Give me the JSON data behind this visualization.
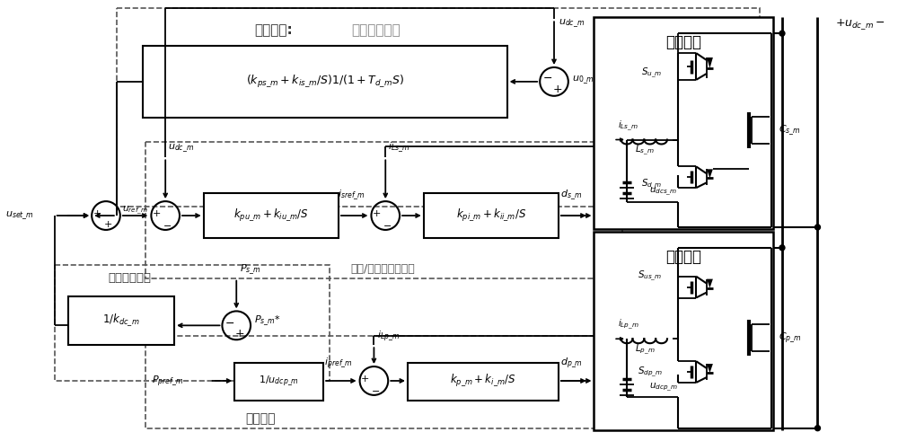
{
  "bg_color": "#ffffff",
  "fig_w": 10.0,
  "fig_h": 4.91,
  "dpi": 100,
  "secondary_label1": "二次控制:",
  "secondary_label2": "直流电压恢复",
  "dual_loop_label": "电压/电流双闭环控制",
  "droop_label": "直流电压下垂",
  "power_ctrl_label": "功率控制",
  "balance_unit_label": "平衡单元",
  "power_unit_label": "功率单元",
  "pi_sec_text": "$(k_{ps\\_m}+k_{is\\_m}/S)1/(1+T_{d\\_m}S)$",
  "kpu_text": "$k_{pu\\_m}+k_{iu\\_m}/S$",
  "kpi_text": "$k_{pi\\_m}+k_{ii\\_m}/S$",
  "kdc_text": "$1/k_{dc\\_m}$",
  "kudcp_text": "$1/u_{dcp\\_m}$",
  "kp_text": "$k_{p\\_m}+k_{i\\_m}/S$",
  "label_uset": "$u_{set\\_m}$",
  "label_uref": "$u_{ref\\_m}$",
  "label_udc1": "$u_{dc\\_m}$",
  "label_udc2": "$u_{dc\\_m}$",
  "label_u0": "$u_{0\\_m}$",
  "label_isref": "$i_{sref\\_m}$",
  "label_iLs": "$i_{Ls\\_m}$",
  "label_ds": "$d_{s\\_m}$",
  "label_Ps": "$P_{s\\_m}$",
  "label_Psstar": "$P_{s\\_m}$*",
  "label_Ppref": "$P_{pref\\_m}$",
  "label_ipref": "$i_{pref\\_m}$",
  "label_iLp": "$i_{Lp\\_m}$",
  "label_dp": "$d_{p\\_m}$",
  "label_udcm_top": "$+u_{dc\\_m}-$",
  "label_Sus": "$S_{u\\_m}$",
  "label_Sd": "$S_{d\\_m}$",
  "label_Ls": "$L_{s\\_m}$",
  "label_iLscirc": "$i_{Ls\\_m}$",
  "label_udcs": "$u_{dcs\\_m}$",
  "label_Cs": "$C_{s\\_m}$",
  "label_Sus2": "$S_{us\\_m}$",
  "label_Sdp": "$S_{dp\\_m}$",
  "label_Lp": "$L_{p\\_m}$",
  "label_iLpcirc": "$i_{Lp\\_m}$",
  "label_udcp": "$u_{dcp\\_m}$",
  "label_Cp": "$C_{p\\_m}$"
}
